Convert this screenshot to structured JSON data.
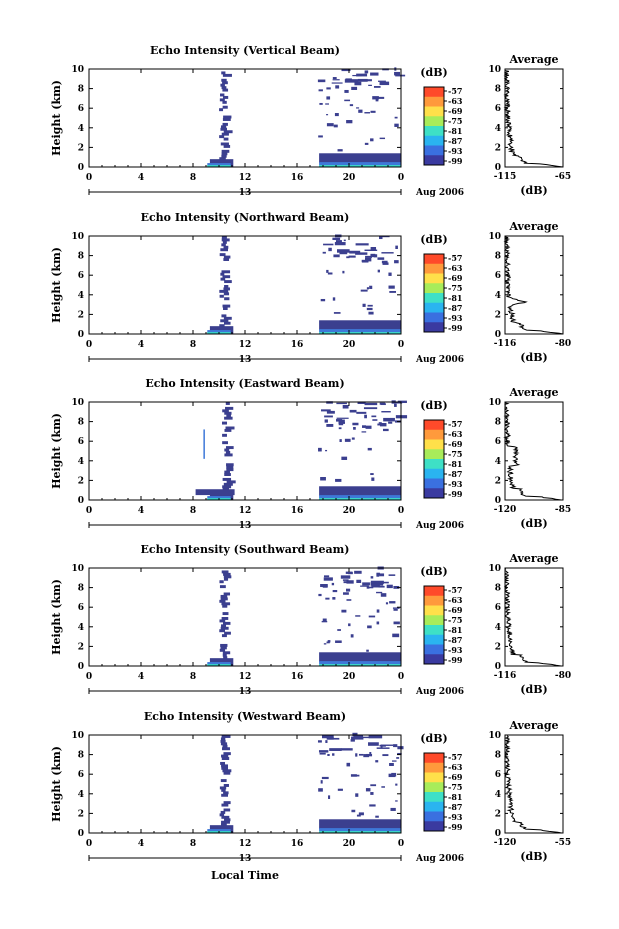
{
  "chart_data": [
    {
      "type": "heatmap",
      "title": "Echo Intensity (Vertical Beam)",
      "ylabel": "Height (km)",
      "x_ticks": [
        "0",
        "4",
        "8",
        "12",
        "16",
        "20",
        "0"
      ],
      "y_ticks": [
        "0",
        "2",
        "4",
        "6",
        "8",
        "10"
      ],
      "xlim": [
        0,
        24
      ],
      "ylim": [
        0,
        10
      ],
      "date_marker": "13",
      "date_label": "Aug 2006",
      "colorbar": {
        "unit": "(dB)",
        "levels": [
          "-57",
          "-63",
          "-69",
          "-75",
          "-81",
          "-87",
          "-93",
          "-99"
        ]
      },
      "average_profile": {
        "title": "Average",
        "xlabel": "(dB)",
        "x_ticks": [
          "-115",
          "-65"
        ],
        "xlim": [
          -115,
          -65
        ],
        "y_ticks": [
          "0",
          "2",
          "4",
          "6",
          "8",
          "10"
        ],
        "ylim": [
          0,
          10
        ]
      }
    },
    {
      "type": "heatmap",
      "title": "Echo Intensity (Northward Beam)",
      "ylabel": "Height (km)",
      "x_ticks": [
        "0",
        "4",
        "8",
        "12",
        "16",
        "20",
        "0"
      ],
      "y_ticks": [
        "0",
        "2",
        "4",
        "6",
        "8",
        "10"
      ],
      "xlim": [
        0,
        24
      ],
      "ylim": [
        0,
        10
      ],
      "date_marker": "13",
      "date_label": "Aug 2006",
      "colorbar": {
        "unit": "(dB)",
        "levels": [
          "-57",
          "-63",
          "-69",
          "-75",
          "-81",
          "-87",
          "-93",
          "-99"
        ]
      },
      "average_profile": {
        "title": "Average",
        "xlabel": "(dB)",
        "x_ticks": [
          "-116",
          "-80"
        ],
        "xlim": [
          -116,
          -80
        ],
        "y_ticks": [
          "0",
          "2",
          "4",
          "6",
          "8",
          "10"
        ],
        "ylim": [
          0,
          10
        ]
      }
    },
    {
      "type": "heatmap",
      "title": "Echo Intensity (Eastward Beam)",
      "ylabel": "Height (km)",
      "x_ticks": [
        "0",
        "4",
        "8",
        "12",
        "16",
        "20",
        "0"
      ],
      "y_ticks": [
        "0",
        "2",
        "4",
        "6",
        "8",
        "10"
      ],
      "xlim": [
        0,
        24
      ],
      "ylim": [
        0,
        10
      ],
      "date_marker": "13",
      "date_label": "Aug 2006",
      "colorbar": {
        "unit": "(dB)",
        "levels": [
          "-57",
          "-63",
          "-69",
          "-75",
          "-81",
          "-87",
          "-93",
          "-99"
        ]
      },
      "average_profile": {
        "title": "Average",
        "xlabel": "(dB)",
        "x_ticks": [
          "-120",
          "-85"
        ],
        "xlim": [
          -120,
          -85
        ],
        "y_ticks": [
          "0",
          "2",
          "4",
          "6",
          "8",
          "10"
        ],
        "ylim": [
          0,
          10
        ]
      }
    },
    {
      "type": "heatmap",
      "title": "Echo Intensity (Southward Beam)",
      "ylabel": "Height (km)",
      "x_ticks": [
        "0",
        "4",
        "8",
        "12",
        "16",
        "20",
        "0"
      ],
      "y_ticks": [
        "0",
        "2",
        "4",
        "6",
        "8",
        "10"
      ],
      "xlim": [
        0,
        24
      ],
      "ylim": [
        0,
        10
      ],
      "date_marker": "13",
      "date_label": "Aug 2006",
      "colorbar": {
        "unit": "(dB)",
        "levels": [
          "-57",
          "-63",
          "-69",
          "-75",
          "-81",
          "-87",
          "-93",
          "-99"
        ]
      },
      "average_profile": {
        "title": "Average",
        "xlabel": "(dB)",
        "x_ticks": [
          "-116",
          "-80"
        ],
        "xlim": [
          -116,
          -80
        ],
        "y_ticks": [
          "0",
          "2",
          "4",
          "6",
          "8",
          "10"
        ],
        "ylim": [
          0,
          10
        ]
      }
    },
    {
      "type": "heatmap",
      "title": "Echo Intensity (Westward Beam)",
      "ylabel": "Height (km)",
      "xlabel": "Local Time",
      "x_ticks": [
        "0",
        "4",
        "8",
        "12",
        "16",
        "20",
        "0"
      ],
      "y_ticks": [
        "0",
        "2",
        "4",
        "6",
        "8",
        "10"
      ],
      "xlim": [
        0,
        24
      ],
      "ylim": [
        0,
        10
      ],
      "date_marker": "13",
      "date_label": "Aug 2006",
      "colorbar": {
        "unit": "(dB)",
        "levels": [
          "-57",
          "-63",
          "-69",
          "-75",
          "-81",
          "-87",
          "-93",
          "-99"
        ]
      },
      "average_profile": {
        "title": "Average",
        "xlabel": "(dB)",
        "x_ticks": [
          "-120",
          "-55"
        ],
        "xlim": [
          -120,
          -55
        ],
        "y_ticks": [
          "0",
          "2",
          "4",
          "6",
          "8",
          "10"
        ],
        "ylim": [
          0,
          10
        ]
      }
    }
  ],
  "colors": {
    "colorbar_scale": [
      "#ff4a2a",
      "#ff9a3c",
      "#ffe04a",
      "#a8ec5a",
      "#3ee0c6",
      "#2ab4f0",
      "#3a70e0",
      "#3a3aa0"
    ],
    "echo_low": "#3b3f8f",
    "echo_mid": "#3e78d8",
    "echo_high": "#35d2c8",
    "line": "#000000"
  }
}
